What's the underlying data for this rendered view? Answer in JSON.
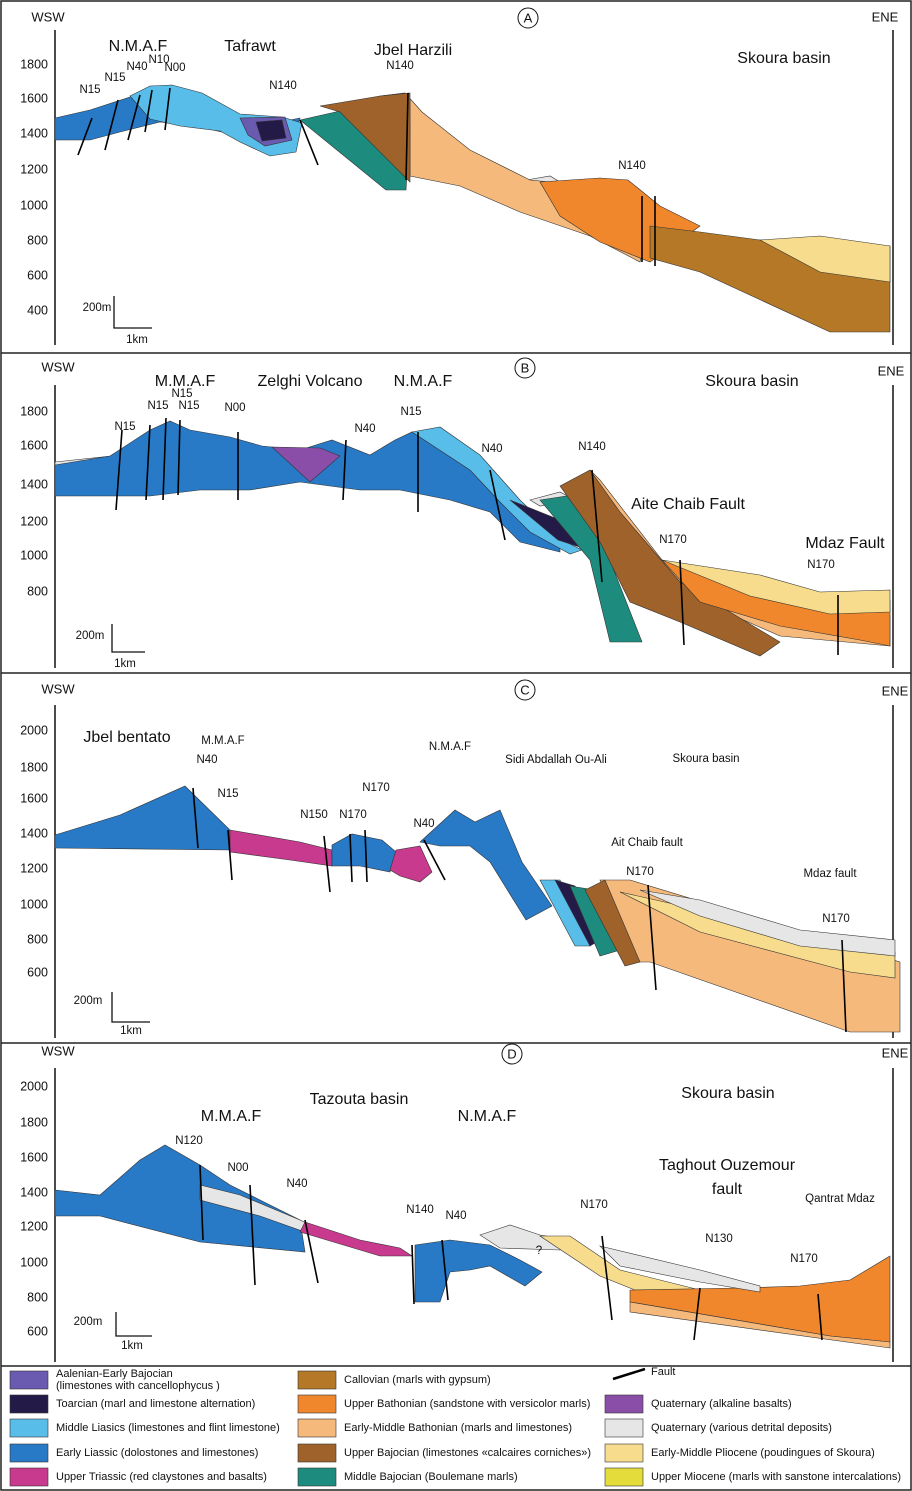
{
  "panels": [
    {
      "label": "A",
      "left": "WSW",
      "right": "ENE",
      "elevations": [
        1800,
        1600,
        1400,
        1200,
        1000,
        800,
        600,
        400
      ],
      "scale_vertical": "200m",
      "scale_horizontal": "1km",
      "annotations": [
        "N.M.A.F",
        "Tafrawt",
        "Jbel Harzili",
        "Skoura basin",
        "N15",
        "N15",
        "N40",
        "N10",
        "N00",
        "N140",
        "N140",
        "N140"
      ]
    },
    {
      "label": "B",
      "left": "WSW",
      "right": "ENE",
      "elevations": [
        1800,
        1600,
        1400,
        1200,
        1000,
        800
      ],
      "scale_vertical": "200m",
      "scale_horizontal": "1km",
      "annotations": [
        "M.M.A.F",
        "Zelghi Volcano",
        "N.M.A.F",
        "Skoura basin",
        "N15",
        "N15",
        "N15",
        "N15",
        "N00",
        "N40",
        "N15",
        "N40",
        "N140",
        "Aite Chaib Fault",
        "N170",
        "Mdaz Fault",
        "N170"
      ]
    },
    {
      "label": "C",
      "left": "WSW",
      "right": "ENE",
      "elevations": [
        2000,
        1800,
        1600,
        1400,
        1200,
        1000,
        800,
        600
      ],
      "scale_vertical": "200m",
      "scale_horizontal": "1km",
      "annotations": [
        "Jbel bentato",
        "M.M.A.F",
        "N40",
        "N.M.A.F",
        "Sidi Abdallah Ou-Ali",
        "Skoura basin",
        "N15",
        "N170",
        "N150",
        "N170",
        "N40",
        "Ait Chaib fault",
        "N170",
        "Mdaz fault",
        "N170"
      ]
    },
    {
      "label": "D",
      "left": "WSW",
      "right": "ENE",
      "elevations": [
        2000,
        1800,
        1600,
        1400,
        1200,
        1000,
        800,
        600
      ],
      "scale_vertical": "200m",
      "scale_horizontal": "1km",
      "annotations": [
        "Tazouta basin",
        "M.M.A.F",
        "N.M.A.F",
        "Skoura basin",
        "Taghout  Ouzemour",
        "fault",
        "Qantrat Mdaz",
        "N120",
        "N00",
        "N40",
        "N140",
        "N40",
        "?",
        "N170",
        "N130",
        "N170"
      ]
    }
  ],
  "legend": [
    {
      "label": "Aalenian-Early Bajocian",
      "detail": "(limestones with cancellophycus )",
      "color": "#6a5bb0"
    },
    {
      "label": "Toarcian (marl and limestone alternation)",
      "color": "#241a48"
    },
    {
      "label": "Middle Liasics (limestones and flint limestone)",
      "color": "#58bde9"
    },
    {
      "label": "Early Liassic (dolostones and limestones)",
      "color": "#2879c6"
    },
    {
      "label": "Upper Triassic (red claystones and basalts)",
      "color": "#c83a8e"
    },
    {
      "label": "Callovian (marls with gypsum)",
      "color": "#b57826"
    },
    {
      "label": "Upper Bathonian (sandstone with versicolor marls)",
      "color": "#f0872c"
    },
    {
      "label": "Early-Middle Bathonian (marls and limestones)",
      "color": "#f6b97c"
    },
    {
      "label": "Upper Bajocian (limestones «calcaires corniches»)",
      "color": "#9e622a"
    },
    {
      "label": "Middle Bajocian (Boulemane marls)",
      "color": "#1d8c7e"
    },
    {
      "label": "Fault",
      "color": "#000000"
    },
    {
      "label": "Quaternary (alkaline basalts)",
      "color": "#8a4ea8"
    },
    {
      "label": "Quaternary (various detrital deposits)",
      "color": "#e6e6e6"
    },
    {
      "label": "Early-Middle Pliocene (poudingues of Skoura)",
      "color": "#f6dc8c"
    },
    {
      "label": "Upper Miocene (marls with sanstone intercalations)",
      "color": "#e4dc3a"
    }
  ]
}
